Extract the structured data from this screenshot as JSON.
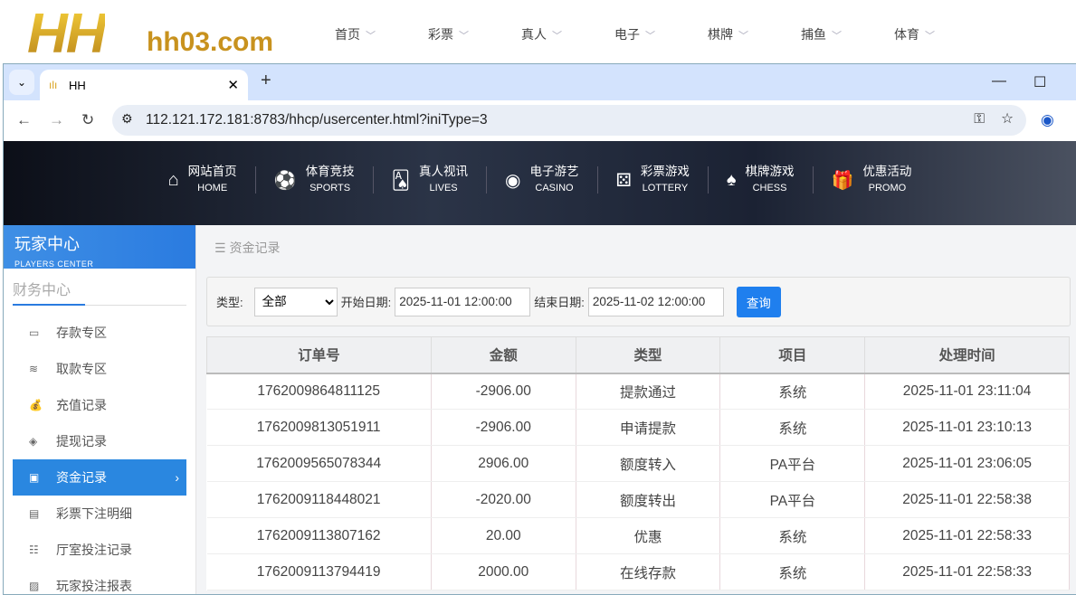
{
  "site": {
    "logo": "HH",
    "domain": "hh03.com",
    "nav": [
      "首页",
      "彩票",
      "真人",
      "电子",
      "棋牌",
      "捕鱼",
      "体育"
    ]
  },
  "browser": {
    "tab_title": "HH",
    "url": "112.121.172.181:8783/hhcp/usercenter.html?iniType=3"
  },
  "banner": [
    {
      "cn": "网站首页",
      "en": "HOME",
      "icon": "home-icon",
      "g": "⌂"
    },
    {
      "cn": "体育竞技",
      "en": "SPORTS",
      "icon": "ball-icon",
      "g": "⚽"
    },
    {
      "cn": "真人视讯",
      "en": "LIVES",
      "icon": "cards-icon",
      "g": "🂡"
    },
    {
      "cn": "电子游艺",
      "en": "CASINO",
      "icon": "slot-icon",
      "g": "◉"
    },
    {
      "cn": "彩票游戏",
      "en": "LOTTERY",
      "icon": "dice-icon",
      "g": "⚄"
    },
    {
      "cn": "棋牌游戏",
      "en": "CHESS",
      "icon": "spade-icon",
      "g": "♠"
    },
    {
      "cn": "优惠活动",
      "en": "PROMO",
      "icon": "gift-icon",
      "g": "🎁"
    }
  ],
  "sidebar": {
    "title": "玩家中心",
    "subtitle": "PLAYERS CENTER",
    "section": "财务中心",
    "items": [
      {
        "label": "存款专区",
        "g": "▭"
      },
      {
        "label": "取款专区",
        "g": "≋"
      },
      {
        "label": "充值记录",
        "g": "💰"
      },
      {
        "label": "提现记录",
        "g": "◈"
      },
      {
        "label": "资金记录",
        "g": "▣",
        "active": true
      },
      {
        "label": "彩票下注明细",
        "g": "▤"
      },
      {
        "label": "厅室投注记录",
        "g": "☷"
      },
      {
        "label": "玩家投注报表",
        "g": "▨"
      }
    ]
  },
  "main": {
    "breadcrumb": "资金记录",
    "filter": {
      "type_label": "类型:",
      "type_value": "全部",
      "start_label": "开始日期:",
      "start_value": "2025-11-01 12:00:00",
      "end_label": "结束日期:",
      "end_value": "2025-11-02 12:00:00",
      "query": "查询"
    },
    "columns": [
      "订单号",
      "金额",
      "类型",
      "项目",
      "处理时间"
    ],
    "rows": [
      [
        "1762009864811125",
        "-2906.00",
        "提款通过",
        "系统",
        "2025-11-01 23:11:04"
      ],
      [
        "1762009813051911",
        "-2906.00",
        "申请提款",
        "系统",
        "2025-11-01 23:10:13"
      ],
      [
        "1762009565078344",
        "2906.00",
        "额度转入",
        "PA平台",
        "2025-11-01 23:06:05"
      ],
      [
        "1762009118448021",
        "-2020.00",
        "额度转出",
        "PA平台",
        "2025-11-01 22:58:38"
      ],
      [
        "1762009113807162",
        "20.00",
        "优惠",
        "系统",
        "2025-11-01 22:58:33"
      ],
      [
        "1762009113794419",
        "2000.00",
        "在线存款",
        "系统",
        "2025-11-01 22:58:33"
      ]
    ]
  }
}
